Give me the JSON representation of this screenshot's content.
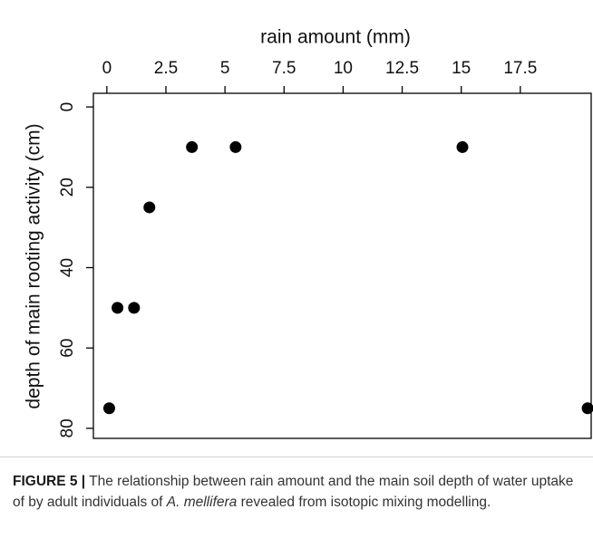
{
  "chart_data": {
    "type": "scatter",
    "x_label": "rain amount (mm)",
    "y_label": "depth of main rooting activity (cm)",
    "x": [
      0.1,
      0.45,
      1.15,
      1.8,
      3.6,
      5.45,
      15.05,
      20.35
    ],
    "values": [
      75,
      50,
      50,
      25,
      10,
      10,
      10,
      75
    ],
    "color": "#000000",
    "xlim": [
      -0.57,
      20.5
    ],
    "ylim": [
      -3.4,
      82.5
    ],
    "y_inverted": true,
    "x_axis_position": "top",
    "xticks": [
      0,
      2.5,
      5,
      7.5,
      10,
      12.5,
      15,
      17.5
    ],
    "yticks": [
      0,
      20,
      40,
      60,
      80
    ]
  },
  "caption": {
    "label": "FIGURE 5 |",
    "text_before": " The relationship between rain amount and the main soil depth of water uptake of by adult individuals of ",
    "species": "A. mellifera",
    "text_after": " revealed from isotopic mixing modelling."
  }
}
